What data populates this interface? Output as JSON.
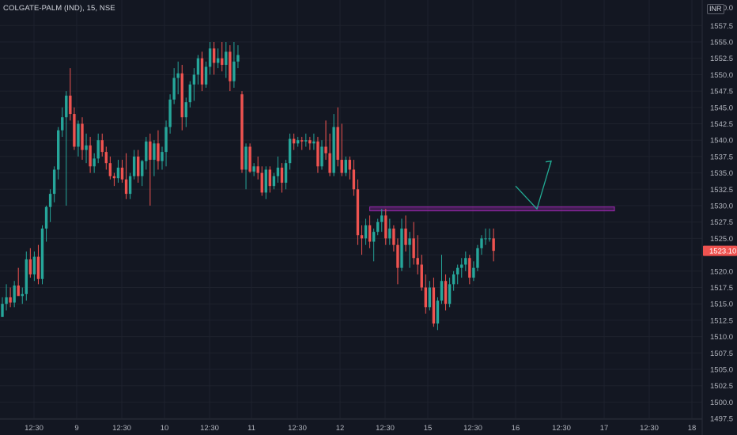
{
  "header": {
    "symbol_info": "COLGATE-PALM (IND), 15, NSE",
    "currency": "INR"
  },
  "colors": {
    "background": "#131722",
    "up": "#26a69a",
    "down": "#ef5350",
    "grid": "#1e222d",
    "axis_text": "#b2b5be",
    "zone": "#9c27b0",
    "arrow": "#22ab94"
  },
  "chart_data": {
    "type": "candlestick",
    "instrument": "COLGATE-PALM",
    "interval": "15",
    "exchange": "NSE",
    "ylim": [
      1496,
      1561
    ],
    "y_ticks": [
      1497.5,
      1500.0,
      1502.5,
      1505.0,
      1507.5,
      1510.0,
      1512.5,
      1515.0,
      1517.5,
      1520.0,
      1522.5,
      1525.0,
      1527.5,
      1530.0,
      1532.5,
      1535.0,
      1537.5,
      1540.0,
      1542.5,
      1545.0,
      1547.5,
      1550.0,
      1552.5,
      1555.0,
      1557.5
    ],
    "x_tick_labels": [
      "12:30",
      "9",
      "12:30",
      "10",
      "12:30",
      "11",
      "12:30",
      "12",
      "12:30",
      "15",
      "12:30",
      "16",
      "12:30",
      "17",
      "12:30",
      "18"
    ],
    "top_partial_tick": "1560.0",
    "last_price": "1523.10",
    "horizontal_zone": {
      "low": 1529.2,
      "high": 1529.8
    },
    "projection_path": [
      1533.0,
      1529.5,
      1536.8
    ],
    "candles": [
      [
        1513.0,
        1516.0,
        1513.0,
        1515.0
      ],
      [
        1515.0,
        1518.0,
        1514.0,
        1516.0
      ],
      [
        1516.0,
        1517.5,
        1514.5,
        1515.2
      ],
      [
        1515.2,
        1518.5,
        1514.5,
        1517.8
      ],
      [
        1517.8,
        1520.5,
        1516.5,
        1516.2
      ],
      [
        1516.2,
        1517.5,
        1515.0,
        1516.5
      ],
      [
        1516.5,
        1523.0,
        1515.5,
        1521.8
      ],
      [
        1521.8,
        1523.5,
        1519.0,
        1519.5
      ],
      [
        1519.5,
        1523.0,
        1518.5,
        1522.2
      ],
      [
        1522.2,
        1524.0,
        1518.0,
        1518.8
      ],
      [
        1518.8,
        1527.0,
        1518.0,
        1526.5
      ],
      [
        1526.5,
        1530.0,
        1524.5,
        1529.8
      ],
      [
        1529.8,
        1532.5,
        1527.5,
        1531.8
      ],
      [
        1531.8,
        1536.0,
        1530.5,
        1535.5
      ],
      [
        1535.5,
        1542.0,
        1534.0,
        1541.5
      ],
      [
        1541.5,
        1545.0,
        1540.5,
        1543.5
      ],
      [
        1543.5,
        1547.5,
        1530.0,
        1546.8
      ],
      [
        1546.8,
        1551.0,
        1543.0,
        1544.0
      ],
      [
        1544.0,
        1545.0,
        1538.5,
        1539.0
      ],
      [
        1539.0,
        1543.0,
        1537.5,
        1542.5
      ],
      [
        1542.5,
        1543.5,
        1537.0,
        1538.5
      ],
      [
        1538.5,
        1541.0,
        1536.5,
        1539.2
      ],
      [
        1539.2,
        1540.5,
        1535.0,
        1536.0
      ],
      [
        1536.0,
        1538.0,
        1535.0,
        1537.2
      ],
      [
        1537.2,
        1541.0,
        1536.5,
        1540.0
      ],
      [
        1540.0,
        1541.0,
        1537.5,
        1538.2
      ],
      [
        1538.2,
        1539.0,
        1535.5,
        1536.5
      ],
      [
        1536.5,
        1537.5,
        1534.0,
        1534.5
      ],
      [
        1534.5,
        1535.0,
        1533.0,
        1534.2
      ],
      [
        1534.2,
        1537.0,
        1533.5,
        1535.8
      ],
      [
        1535.8,
        1537.0,
        1533.5,
        1534.0
      ],
      [
        1534.0,
        1538.0,
        1531.0,
        1531.8
      ],
      [
        1531.8,
        1535.0,
        1531.0,
        1534.5
      ],
      [
        1534.5,
        1538.5,
        1534.0,
        1537.5
      ],
      [
        1537.5,
        1538.5,
        1533.5,
        1534.5
      ],
      [
        1534.5,
        1537.0,
        1533.0,
        1536.8
      ],
      [
        1536.8,
        1540.5,
        1535.5,
        1539.8
      ],
      [
        1539.8,
        1541.0,
        1530.0,
        1537.0
      ],
      [
        1537.0,
        1540.0,
        1534.5,
        1539.5
      ],
      [
        1539.5,
        1541.5,
        1535.5,
        1536.8
      ],
      [
        1536.8,
        1539.0,
        1535.5,
        1538.2
      ],
      [
        1538.2,
        1543.0,
        1536.0,
        1542.0
      ],
      [
        1542.0,
        1547.0,
        1541.0,
        1546.2
      ],
      [
        1546.2,
        1551.0,
        1545.5,
        1549.5
      ],
      [
        1549.5,
        1552.0,
        1547.0,
        1550.2
      ],
      [
        1550.2,
        1551.5,
        1541.5,
        1543.5
      ],
      [
        1543.5,
        1546.5,
        1542.0,
        1545.8
      ],
      [
        1545.8,
        1549.0,
        1545.0,
        1548.5
      ],
      [
        1548.5,
        1551.0,
        1546.0,
        1550.0
      ],
      [
        1550.0,
        1553.0,
        1548.5,
        1552.5
      ],
      [
        1552.5,
        1553.5,
        1547.5,
        1548.5
      ],
      [
        1548.5,
        1552.0,
        1548.0,
        1551.2
      ],
      [
        1551.2,
        1555.0,
        1550.0,
        1554.0
      ],
      [
        1554.0,
        1555.0,
        1550.0,
        1551.8
      ],
      [
        1551.8,
        1554.0,
        1551.0,
        1552.5
      ],
      [
        1552.5,
        1555.0,
        1550.5,
        1551.5
      ],
      [
        1551.5,
        1555.0,
        1549.5,
        1553.5
      ],
      [
        1553.5,
        1554.5,
        1547.5,
        1549.0
      ],
      [
        1549.0,
        1555.0,
        1548.0,
        1552.0
      ],
      [
        1552.0,
        1554.5,
        1551.0,
        1553.0
      ],
      [
        1547.0,
        1547.5,
        1535.0,
        1535.5
      ],
      [
        1535.5,
        1539.5,
        1532.5,
        1539.0
      ],
      [
        1539.0,
        1539.5,
        1535.0,
        1535.2
      ],
      [
        1535.2,
        1536.5,
        1534.5,
        1536.0
      ],
      [
        1536.0,
        1537.5,
        1534.0,
        1535.0
      ],
      [
        1535.0,
        1536.0,
        1531.5,
        1532.0
      ],
      [
        1532.0,
        1536.0,
        1531.0,
        1535.5
      ],
      [
        1535.5,
        1536.0,
        1532.0,
        1533.0
      ],
      [
        1533.0,
        1535.0,
        1532.5,
        1534.5
      ],
      [
        1534.5,
        1537.5,
        1533.5,
        1535.8
      ],
      [
        1535.8,
        1536.5,
        1532.0,
        1533.5
      ],
      [
        1533.5,
        1537.0,
        1532.5,
        1536.5
      ],
      [
        1536.5,
        1541.0,
        1535.5,
        1540.2
      ],
      [
        1540.2,
        1541.0,
        1538.5,
        1539.5
      ],
      [
        1539.5,
        1540.5,
        1539.0,
        1540.0
      ],
      [
        1540.0,
        1540.5,
        1538.5,
        1539.8
      ],
      [
        1539.8,
        1541.0,
        1539.0,
        1540.0
      ],
      [
        1540.0,
        1540.5,
        1538.5,
        1539.5
      ],
      [
        1539.5,
        1541.0,
        1538.5,
        1539.8
      ],
      [
        1539.8,
        1540.5,
        1535.0,
        1536.0
      ],
      [
        1536.0,
        1540.0,
        1535.5,
        1539.0
      ],
      [
        1539.0,
        1543.0,
        1537.0,
        1538.0
      ],
      [
        1538.0,
        1541.0,
        1534.5,
        1535.0
      ],
      [
        1535.0,
        1544.0,
        1534.5,
        1542.0
      ],
      [
        1542.0,
        1545.0,
        1536.0,
        1537.0
      ],
      [
        1537.0,
        1542.5,
        1534.5,
        1535.0
      ],
      [
        1535.0,
        1537.5,
        1534.5,
        1537.0
      ],
      [
        1537.0,
        1537.5,
        1534.0,
        1535.5
      ],
      [
        1535.5,
        1537.0,
        1531.5,
        1532.5
      ],
      [
        1532.5,
        1534.0,
        1524.0,
        1525.5
      ],
      [
        1525.5,
        1527.0,
        1522.5,
        1525.0
      ],
      [
        1525.0,
        1528.0,
        1524.0,
        1527.0
      ],
      [
        1527.0,
        1528.5,
        1523.5,
        1524.5
      ],
      [
        1524.5,
        1526.5,
        1521.5,
        1526.0
      ],
      [
        1526.0,
        1528.0,
        1525.5,
        1527.5
      ],
      [
        1527.5,
        1529.5,
        1526.0,
        1528.5
      ],
      [
        1528.5,
        1529.5,
        1524.0,
        1525.0
      ],
      [
        1525.0,
        1528.0,
        1524.0,
        1526.5
      ],
      [
        1526.5,
        1527.0,
        1523.0,
        1524.0
      ],
      [
        1524.0,
        1525.0,
        1518.0,
        1520.5
      ],
      [
        1520.5,
        1528.0,
        1520.0,
        1526.5
      ],
      [
        1526.5,
        1528.5,
        1523.0,
        1524.0
      ],
      [
        1524.0,
        1526.0,
        1520.5,
        1525.0
      ],
      [
        1525.0,
        1527.5,
        1521.0,
        1522.0
      ],
      [
        1522.0,
        1525.5,
        1519.5,
        1521.0
      ],
      [
        1521.0,
        1522.5,
        1517.0,
        1517.5
      ],
      [
        1517.5,
        1519.5,
        1513.5,
        1514.5
      ],
      [
        1514.5,
        1518.5,
        1514.0,
        1517.5
      ],
      [
        1517.5,
        1519.0,
        1511.5,
        1512.0
      ],
      [
        1512.0,
        1516.0,
        1511.0,
        1515.5
      ],
      [
        1515.5,
        1522.5,
        1515.0,
        1518.5
      ],
      [
        1518.5,
        1519.5,
        1514.0,
        1515.0
      ],
      [
        1515.0,
        1519.0,
        1514.5,
        1518.0
      ],
      [
        1518.0,
        1520.0,
        1517.0,
        1519.5
      ],
      [
        1519.5,
        1521.0,
        1518.0,
        1520.5
      ],
      [
        1520.5,
        1522.0,
        1519.0,
        1521.0
      ],
      [
        1521.0,
        1523.0,
        1520.0,
        1522.0
      ],
      [
        1522.0,
        1522.5,
        1518.0,
        1519.0
      ],
      [
        1519.0,
        1521.5,
        1518.5,
        1520.5
      ],
      [
        1520.5,
        1524.0,
        1520.0,
        1523.5
      ],
      [
        1523.5,
        1525.5,
        1522.5,
        1525.0
      ],
      [
        1525.0,
        1526.5,
        1524.0,
        1525.0
      ],
      [
        1525.0,
        1526.5,
        1524.5,
        1525.0
      ],
      [
        1525.0,
        1526.5,
        1521.5,
        1523.1
      ]
    ]
  }
}
